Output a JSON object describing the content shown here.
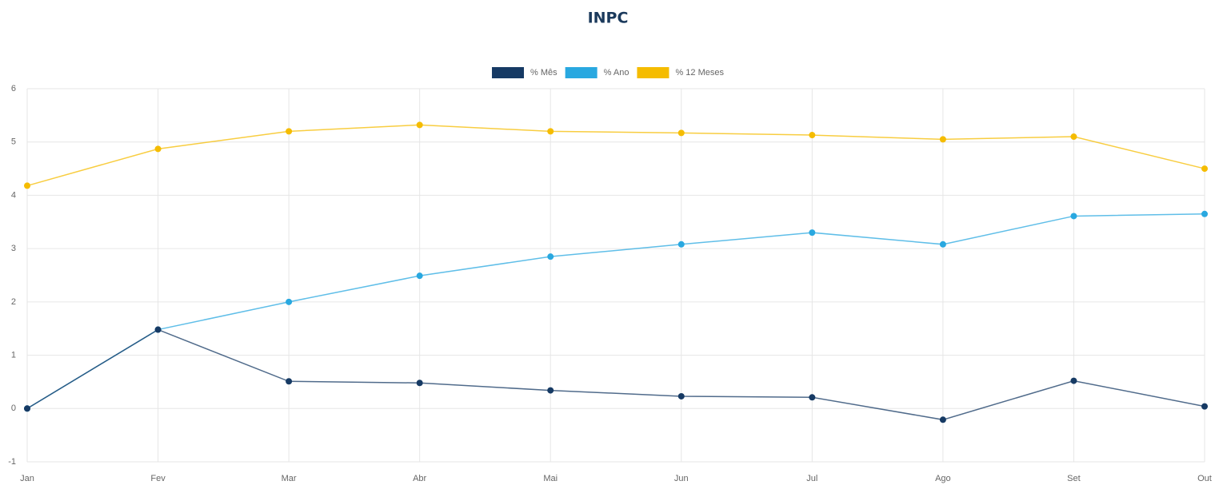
{
  "chart_data": {
    "type": "line",
    "title": "INPC",
    "categories": [
      "Jan",
      "Fev",
      "Mar",
      "Abr",
      "Mai",
      "Jun",
      "Jul",
      "Ago",
      "Set",
      "Out"
    ],
    "series": [
      {
        "name": "% Mês",
        "color": "#163a64",
        "values": [
          0.0,
          1.48,
          0.51,
          0.48,
          0.34,
          0.23,
          0.21,
          -0.21,
          0.52,
          0.04
        ]
      },
      {
        "name": "% Ano",
        "color": "#29a8e0",
        "values": [
          0.0,
          1.48,
          2.0,
          2.49,
          2.85,
          3.08,
          3.3,
          3.08,
          3.61,
          3.65
        ]
      },
      {
        "name": "% 12 Meses",
        "color": "#f5bc00",
        "values": [
          4.18,
          4.87,
          5.2,
          5.32,
          5.2,
          5.17,
          5.13,
          5.05,
          5.1,
          4.5
        ]
      }
    ],
    "ylim": [
      -1,
      6
    ],
    "yticks": [
      -1,
      0,
      1,
      2,
      3,
      4,
      5,
      6
    ],
    "grid": true,
    "legend": "top"
  }
}
